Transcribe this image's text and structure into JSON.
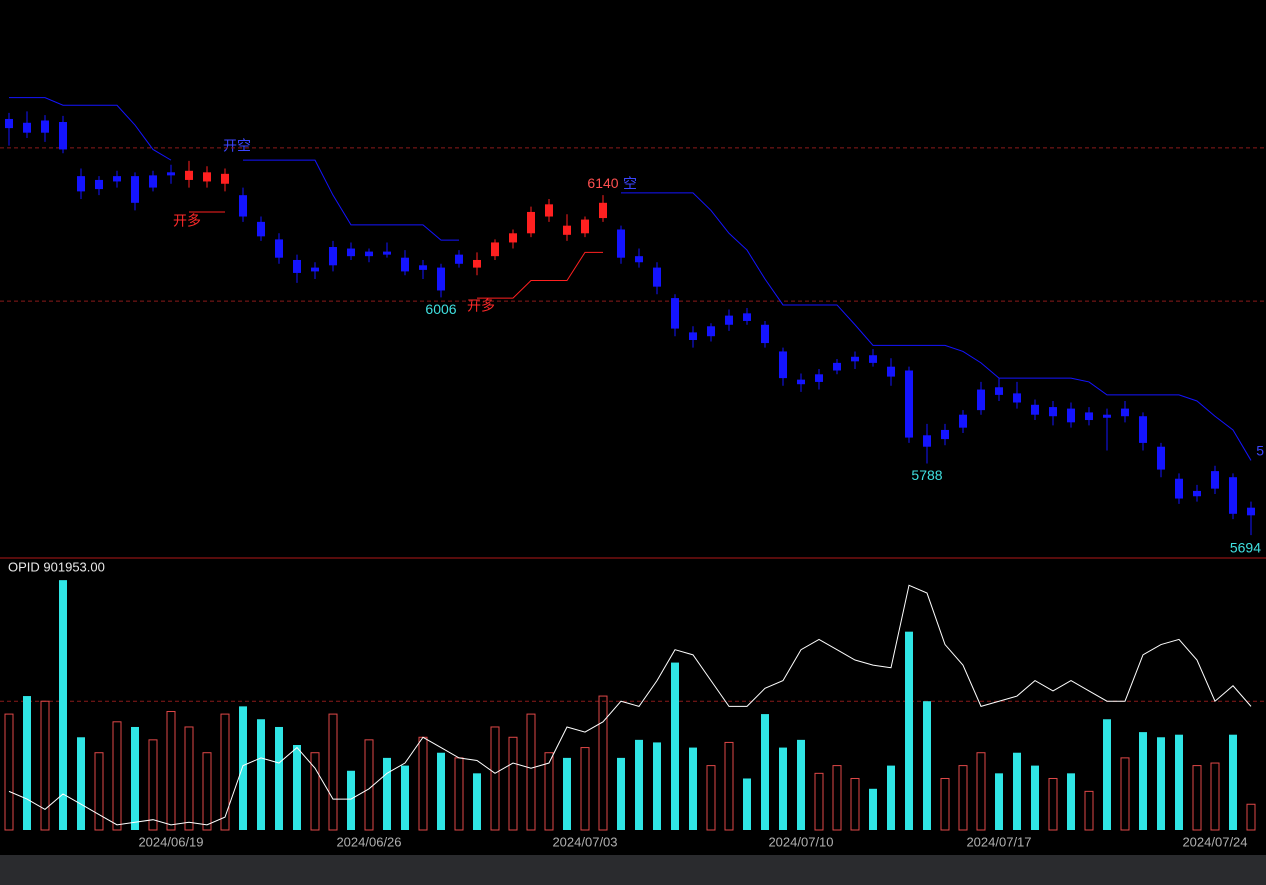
{
  "chart_data": {
    "type": "candlestick",
    "categories": [
      null,
      null,
      null,
      null,
      null,
      null,
      null,
      null,
      null,
      "2024/06/19",
      null,
      null,
      null,
      null,
      null,
      null,
      null,
      null,
      null,
      null,
      "2024/06/26",
      null,
      null,
      null,
      null,
      null,
      null,
      null,
      null,
      null,
      null,
      null,
      "2024/07/03",
      null,
      null,
      null,
      null,
      null,
      null,
      null,
      null,
      null,
      null,
      null,
      "2024/07/10",
      null,
      null,
      null,
      null,
      null,
      null,
      null,
      null,
      null,
      null,
      "2024/07/17",
      null,
      null,
      null,
      null,
      null,
      null,
      null,
      null,
      null,
      null,
      null,
      "2024/07/24",
      null,
      null
    ],
    "open": [
      6228,
      6235,
      6222,
      6236,
      6165,
      6148,
      6158,
      6165,
      6150,
      6166,
      6160,
      6158,
      6155,
      6140,
      6105,
      6082,
      6055,
      6040,
      6048,
      6070,
      6060,
      6066,
      6058,
      6042,
      6045,
      6050,
      6055,
      6060,
      6078,
      6090,
      6112,
      6100,
      6090,
      6110,
      6095,
      6060,
      6045,
      6005,
      5960,
      5955,
      5970,
      5985,
      5970,
      5935,
      5898,
      5895,
      5910,
      5922,
      5930,
      5915,
      5910,
      5825,
      5820,
      5835,
      5858,
      5888,
      5880,
      5865,
      5850,
      5860,
      5845,
      5852,
      5850,
      5850,
      5810,
      5768,
      5745,
      5755,
      5770,
      5720
    ],
    "high": [
      6248,
      6250,
      6245,
      6244,
      6175,
      6165,
      6172,
      6170,
      6172,
      6180,
      6185,
      6178,
      6175,
      6150,
      6112,
      6090,
      6062,
      6052,
      6080,
      6078,
      6070,
      6078,
      6068,
      6055,
      6050,
      6068,
      6065,
      6082,
      6095,
      6125,
      6135,
      6115,
      6112,
      6140,
      6100,
      6070,
      6052,
      6010,
      5968,
      5972,
      5990,
      5992,
      5975,
      5940,
      5906,
      5912,
      5925,
      5935,
      5938,
      5926,
      5915,
      5840,
      5840,
      5858,
      5895,
      5900,
      5895,
      5872,
      5870,
      5868,
      5862,
      5860,
      5870,
      5855,
      5815,
      5775,
      5760,
      5785,
      5775,
      5738
    ],
    "low": [
      6205,
      6215,
      6210,
      6195,
      6135,
      6140,
      6150,
      6120,
      6145,
      6155,
      6150,
      6150,
      6145,
      6105,
      6080,
      6050,
      6025,
      6030,
      6040,
      6055,
      6052,
      6058,
      6035,
      6030,
      6006,
      6045,
      6035,
      6055,
      6070,
      6085,
      6105,
      6080,
      6085,
      6105,
      6050,
      6045,
      6010,
      5955,
      5940,
      5948,
      5962,
      5970,
      5940,
      5890,
      5882,
      5885,
      5905,
      5912,
      5915,
      5890,
      5815,
      5788,
      5812,
      5828,
      5852,
      5870,
      5860,
      5845,
      5838,
      5835,
      5838,
      5805,
      5842,
      5805,
      5770,
      5735,
      5738,
      5748,
      5715,
      5694
    ],
    "close": [
      6240,
      6222,
      6238,
      6200,
      6145,
      6160,
      6165,
      6130,
      6166,
      6170,
      6172,
      6170,
      6168,
      6112,
      6086,
      6058,
      6038,
      6045,
      6072,
      6060,
      6066,
      6062,
      6040,
      6048,
      6015,
      6062,
      6045,
      6078,
      6090,
      6118,
      6128,
      6088,
      6108,
      6130,
      6058,
      6052,
      6020,
      5965,
      5950,
      5968,
      5982,
      5975,
      5946,
      5900,
      5892,
      5905,
      5920,
      5928,
      5920,
      5902,
      5822,
      5810,
      5832,
      5852,
      5885,
      5878,
      5868,
      5852,
      5862,
      5842,
      5855,
      5848,
      5860,
      5815,
      5780,
      5742,
      5752,
      5778,
      5722,
      5730
    ],
    "upper": [
      6268,
      6268,
      6268,
      6258,
      6258,
      6258,
      6258,
      6232,
      6200,
      6186,
      null,
      null,
      null,
      6186,
      6186,
      6186,
      6186,
      6186,
      6140,
      6101,
      6101,
      6101,
      6101,
      6101,
      6081,
      6081,
      null,
      null,
      null,
      null,
      null,
      null,
      null,
      null,
      6143,
      6143,
      6143,
      6143,
      6143,
      6120,
      6090,
      6068,
      6030,
      5996,
      5996,
      5996,
      5996,
      5970,
      5943,
      5943,
      5943,
      5943,
      5943,
      5935,
      5920,
      5900,
      5900,
      5900,
      5900,
      5900,
      5895,
      5878,
      5878,
      5878,
      5878,
      5878,
      5870,
      5850,
      5832,
      5792
    ],
    "lower": [
      null,
      null,
      null,
      null,
      null,
      null,
      null,
      null,
      null,
      null,
      6118,
      6118,
      6118,
      null,
      null,
      null,
      null,
      null,
      null,
      null,
      null,
      null,
      null,
      null,
      null,
      null,
      6005,
      6005,
      6005,
      6028,
      6028,
      6028,
      6065,
      6065,
      null,
      null,
      null,
      null,
      null,
      null,
      null,
      null,
      null,
      null,
      null,
      null,
      null,
      null,
      null,
      null,
      null,
      null,
      null,
      null,
      null,
      null,
      null,
      null,
      null,
      null,
      null,
      null,
      null,
      null,
      null,
      null,
      null,
      null,
      null,
      null
    ],
    "volume": [
      45,
      52,
      50,
      97,
      36,
      30,
      42,
      40,
      35,
      46,
      40,
      30,
      45,
      48,
      43,
      40,
      33,
      30,
      45,
      23,
      35,
      28,
      25,
      36,
      30,
      28,
      22,
      40,
      36,
      45,
      30,
      28,
      32,
      52,
      28,
      35,
      34,
      65,
      32,
      25,
      34,
      20,
      45,
      32,
      35,
      22,
      25,
      20,
      16,
      25,
      77,
      50,
      20,
      25,
      30,
      22,
      30,
      25,
      20,
      22,
      15,
      43,
      28,
      38,
      36,
      37,
      25,
      26,
      37,
      10
    ],
    "opi": [
      15,
      12,
      8,
      14,
      10,
      6,
      2,
      3,
      4,
      2,
      3,
      2,
      5,
      25,
      28,
      26,
      32,
      24,
      12,
      12,
      16,
      22,
      26,
      36,
      32,
      28,
      27,
      22,
      26,
      24,
      26,
      40,
      38,
      42,
      50,
      48,
      58,
      70,
      68,
      58,
      48,
      48,
      55,
      58,
      70,
      74,
      70,
      66,
      64,
      63,
      95,
      92,
      72,
      64,
      48,
      50,
      52,
      58,
      54,
      58,
      54,
      50,
      50,
      68,
      72,
      74,
      66,
      50,
      56,
      48
    ],
    "ylim": [
      5664,
      6278
    ],
    "vol_ylim": [
      0,
      99
    ],
    "ref_lines": [
      6202,
      6001
    ],
    "vol_ref_line": 50,
    "up_color": "#ff2020",
    "down_color": "#1414ff",
    "vol_up_color": "#e04848",
    "vol_down_color": "#30e6e6",
    "opi_color": "#ffffff",
    "annotations": [
      "开空",
      "开多",
      "开多",
      "空",
      "5"
    ],
    "indicator_label": "OPID 901953.00"
  }
}
